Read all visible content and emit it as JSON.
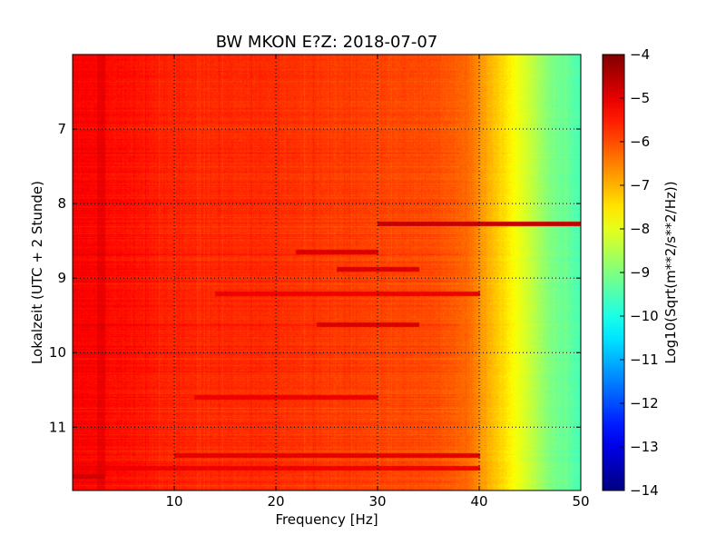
{
  "chart_data": {
    "type": "heatmap",
    "title": "BW MKON E?Z: 2018-07-07",
    "xlabel": "Frequency [Hz]",
    "ylabel": "Lokalzeit (UTC + 2 Stunde)",
    "xlim": [
      0,
      50
    ],
    "ylim": [
      11.85,
      6.0
    ],
    "x_ticks": [
      10,
      20,
      30,
      40,
      50
    ],
    "x_tick_labels": [
      "10",
      "20",
      "30",
      "40",
      "50"
    ],
    "y_ticks": [
      7,
      8,
      9,
      10,
      11
    ],
    "y_tick_labels": [
      "7",
      "8",
      "9",
      "10",
      "11"
    ],
    "grid": true,
    "colormap": "jet",
    "colorbar": {
      "label": "Log10(Sqrt(m**2/s**2/Hz))",
      "range": [
        -14,
        -4
      ],
      "ticks": [
        -4,
        -5,
        -6,
        -7,
        -8,
        -9,
        -10,
        -11,
        -12,
        -13,
        -14
      ],
      "tick_labels": [
        "−4",
        "−5",
        "−6",
        "−7",
        "−8",
        "−9",
        "−10",
        "−11",
        "−12",
        "−13",
        "−14"
      ]
    },
    "frequency_profile": {
      "frequency_hz": [
        0,
        3,
        10,
        20,
        30,
        36,
        39,
        41,
        43,
        45,
        47,
        50
      ],
      "level": [
        -5.2,
        -5.3,
        -5.6,
        -5.7,
        -5.9,
        -6.0,
        -6.3,
        -7.0,
        -7.6,
        -8.3,
        -9.0,
        -9.5
      ]
    },
    "strong_lines": [
      {
        "time": 8.27,
        "f_start": 30,
        "f_end": 50,
        "level": -4.7
      },
      {
        "time": 8.65,
        "f_start": 22,
        "f_end": 30,
        "level": -4.9
      },
      {
        "time": 8.88,
        "f_start": 26,
        "f_end": 34,
        "level": -4.9
      },
      {
        "time": 9.2,
        "f_start": 14,
        "f_end": 40,
        "level": -5.1
      },
      {
        "time": 9.62,
        "f_start": 24,
        "f_end": 34,
        "level": -4.9
      },
      {
        "time": 10.6,
        "f_start": 12,
        "f_end": 30,
        "level": -5.1
      },
      {
        "time": 11.38,
        "f_start": 10,
        "f_end": 40,
        "level": -5.0
      },
      {
        "time": 11.55,
        "f_start": 0,
        "f_end": 40,
        "level": -5.1
      },
      {
        "time": 11.65,
        "f_start": 0,
        "f_end": 3,
        "level": -4.8
      }
    ]
  }
}
